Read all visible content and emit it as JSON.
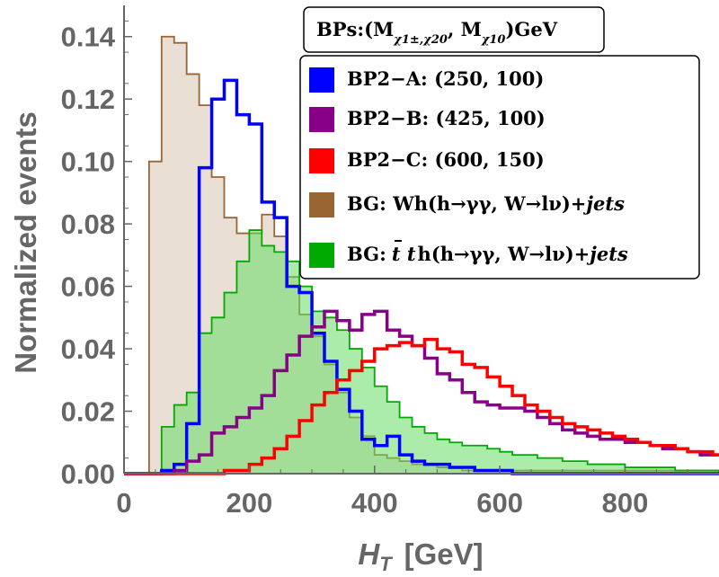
{
  "chart_data": {
    "type": "step-histogram",
    "title": "",
    "xlabel": "H_T [GeV]",
    "xlabel_main": "H",
    "xlabel_sub": "T",
    "xlabel_unit": "[GeV]",
    "ylabel": "Normalized events",
    "xlim": [
      0,
      950
    ],
    "ylim": [
      0,
      0.15
    ],
    "xticks": [
      0,
      200,
      400,
      600,
      800
    ],
    "xtick_labels": [
      "0",
      "200",
      "400",
      "600",
      "800"
    ],
    "yticks": [
      0.0,
      0.02,
      0.04,
      0.06,
      0.08,
      0.1,
      0.12,
      0.14
    ],
    "ytick_labels": [
      "0.00",
      "0.02",
      "0.04",
      "0.06",
      "0.08",
      "0.10",
      "0.12",
      "0.14"
    ],
    "bin_width": 20,
    "bin_start": 0,
    "legend_title": "BPs:(M χ1±,χ20 , M χ10 )GeV",
    "legend_title_parts": {
      "prefix": "BPs:(M",
      "sub1": "χ1±,χ20",
      "comma": ", M",
      "sub2": "χ10",
      "suffix": ")GeV"
    },
    "series": [
      {
        "name": "BG: Wh(h→γγ, W→lν)+jets",
        "legend_prefix": "BG:  Wh(h→γγ, W→lν)+",
        "legend_italic": "jets",
        "style": "filled",
        "color": "#996633",
        "fill": "#d9c4b0",
        "values": [
          0,
          0,
          0.1,
          0.14,
          0.138,
          0.128,
          0.118,
          0.095,
          0.082,
          0.077,
          0.077,
          0.083,
          0.076,
          0.063,
          0.051,
          0.044,
          0.035,
          0.026,
          0.018,
          0.012,
          0.006,
          0.005,
          0.004,
          0.003,
          0.003,
          0.002,
          0.002,
          0.001,
          0.001,
          0.001,
          0.001,
          0.001,
          0.001,
          0.001,
          0.001,
          0.001,
          0.001,
          0.001,
          0.001,
          0.001,
          0.001,
          0.001,
          0.001,
          0.001,
          0.001,
          0.001,
          0.001,
          0.001
        ]
      },
      {
        "name": "BG: tt̄h(h→γγ, W→lν)+jets",
        "legend_prefix": "BG:",
        "legend_tt": "t t",
        "legend_mid": "h(h→γγ, W→lν)+",
        "legend_italic": "jets",
        "style": "filled",
        "color": "#00aa00",
        "fill": "#66dd66",
        "values": [
          0,
          0,
          0.0,
          0.015,
          0.022,
          0.026,
          0.045,
          0.05,
          0.058,
          0.068,
          0.078,
          0.073,
          0.071,
          0.068,
          0.06,
          0.052,
          0.05,
          0.046,
          0.04,
          0.034,
          0.028,
          0.023,
          0.018,
          0.015,
          0.013,
          0.011,
          0.01,
          0.009,
          0.009,
          0.008,
          0.007,
          0.006,
          0.006,
          0.005,
          0.005,
          0.004,
          0.004,
          0.003,
          0.003,
          0.003,
          0.002,
          0.002,
          0.002,
          0.002,
          0.001,
          0.001,
          0.001,
          0.001
        ]
      },
      {
        "name": "BP2-A: (250, 100)",
        "legend": "BP2−A: (250, 100)",
        "style": "line",
        "color": "#0000ff",
        "values": [
          0,
          0,
          0.0,
          0.001,
          0.003,
          0.016,
          0.098,
          0.12,
          0.126,
          0.115,
          0.112,
          0.087,
          0.082,
          0.06,
          0.058,
          0.045,
          0.036,
          0.027,
          0.02,
          0.011,
          0.009,
          0.012,
          0.006,
          0.004,
          0.003,
          0.003,
          0.002,
          0.002,
          0.001,
          0.001,
          0.001,
          0.0,
          0.0,
          0.0,
          0.0,
          0.0,
          0.0,
          0.0,
          0.0,
          0.0,
          0.0,
          0.0,
          0.0,
          0.0,
          0.0,
          0.0,
          0.0,
          0.0
        ]
      },
      {
        "name": "BP2-B: (425, 100)",
        "legend": "BP2−B: (425, 100)",
        "style": "line",
        "color": "#880088",
        "values": [
          0,
          0,
          0.0,
          0.0,
          0.001,
          0.004,
          0.006,
          0.013,
          0.015,
          0.018,
          0.021,
          0.025,
          0.033,
          0.038,
          0.044,
          0.047,
          0.052,
          0.049,
          0.046,
          0.051,
          0.052,
          0.046,
          0.044,
          0.041,
          0.037,
          0.032,
          0.03,
          0.026,
          0.023,
          0.022,
          0.021,
          0.021,
          0.02,
          0.018,
          0.016,
          0.014,
          0.013,
          0.012,
          0.011,
          0.011,
          0.01,
          0.01,
          0.009,
          0.008,
          0.008,
          0.007,
          0.006,
          0.006
        ]
      },
      {
        "name": "BP2-C: (600, 150)",
        "legend": "BP2−C: (600, 150)",
        "style": "line",
        "color": "#ff0000",
        "values": [
          0,
          0,
          0.0,
          0.0,
          0.0,
          0.0,
          0.0,
          0.0,
          0.001,
          0.001,
          0.003,
          0.005,
          0.008,
          0.012,
          0.017,
          0.022,
          0.026,
          0.03,
          0.033,
          0.036,
          0.04,
          0.041,
          0.042,
          0.041,
          0.043,
          0.04,
          0.039,
          0.035,
          0.034,
          0.031,
          0.028,
          0.025,
          0.022,
          0.02,
          0.018,
          0.016,
          0.015,
          0.014,
          0.013,
          0.012,
          0.011,
          0.01,
          0.009,
          0.009,
          0.008,
          0.007,
          0.007,
          0.006
        ]
      }
    ],
    "legend_order": [
      2,
      3,
      4,
      0,
      1
    ]
  }
}
